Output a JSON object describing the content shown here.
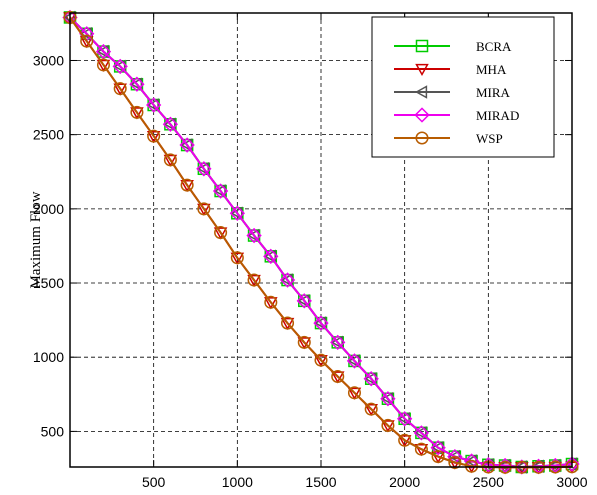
{
  "chart_data": {
    "type": "line",
    "title": "",
    "xlabel": "",
    "ylabel": "Maximum Flow",
    "xlim": [
      0,
      3000
    ],
    "ylim": [
      260,
      3320
    ],
    "xticks": [
      500,
      1000,
      1500,
      2000,
      2500,
      3000
    ],
    "yticks": [
      500,
      1000,
      1500,
      2000,
      2500,
      3000
    ],
    "grid": true,
    "legend_position": "top-right",
    "series": [
      {
        "name": "BCRA",
        "color": "#00cc00",
        "marker": "square",
        "x": [
          0,
          100,
          200,
          300,
          400,
          500,
          600,
          700,
          800,
          900,
          1000,
          1100,
          1200,
          1300,
          1400,
          1500,
          1600,
          1700,
          1800,
          1900,
          2000,
          2100,
          2200,
          2300,
          2400,
          2500,
          2600,
          2700,
          2800,
          2900,
          3000
        ],
        "y": [
          3290,
          3180,
          3060,
          2960,
          2840,
          2700,
          2570,
          2430,
          2270,
          2120,
          1970,
          1820,
          1680,
          1520,
          1380,
          1230,
          1100,
          975,
          855,
          720,
          585,
          490,
          390,
          330,
          300,
          275,
          270,
          260,
          265,
          270,
          280
        ]
      },
      {
        "name": "MHA",
        "color": "#cc0000",
        "marker": "triangle-down",
        "x": [
          0,
          100,
          200,
          300,
          400,
          500,
          600,
          700,
          800,
          900,
          1000,
          1100,
          1200,
          1300,
          1400,
          1500,
          1600,
          1700,
          1800,
          1900,
          2000,
          2100,
          2200,
          2300,
          2400,
          2500,
          2600,
          2700,
          2800,
          2900,
          3000
        ],
        "y": [
          3290,
          3130,
          2970,
          2810,
          2650,
          2490,
          2330,
          2160,
          2000,
          1840,
          1670,
          1520,
          1370,
          1230,
          1100,
          980,
          870,
          760,
          650,
          540,
          440,
          380,
          330,
          290,
          265,
          260,
          258,
          258,
          258,
          260,
          262
        ]
      },
      {
        "name": "MIRA",
        "color": "#555555",
        "marker": "triangle-left",
        "x": [
          0,
          100,
          200,
          300,
          400,
          500,
          600,
          700,
          800,
          900,
          1000,
          1100,
          1200,
          1300,
          1400,
          1500,
          1600,
          1700,
          1800,
          1900,
          2000,
          2100,
          2200,
          2300,
          2400,
          2500,
          2600,
          2700,
          2800,
          2900,
          3000
        ],
        "y": [
          3290,
          3180,
          3060,
          2960,
          2840,
          2700,
          2570,
          2430,
          2270,
          2120,
          1970,
          1820,
          1680,
          1520,
          1380,
          1230,
          1100,
          975,
          855,
          720,
          585,
          490,
          390,
          330,
          300,
          275,
          270,
          260,
          265,
          270,
          280
        ]
      },
      {
        "name": "MIRAD",
        "color": "#ee00ee",
        "marker": "diamond",
        "x": [
          0,
          100,
          200,
          300,
          400,
          500,
          600,
          700,
          800,
          900,
          1000,
          1100,
          1200,
          1300,
          1400,
          1500,
          1600,
          1700,
          1800,
          1900,
          2000,
          2100,
          2200,
          2300,
          2400,
          2500,
          2600,
          2700,
          2800,
          2900,
          3000
        ],
        "y": [
          3290,
          3180,
          3060,
          2960,
          2840,
          2700,
          2570,
          2430,
          2270,
          2120,
          1970,
          1820,
          1680,
          1520,
          1380,
          1230,
          1100,
          975,
          855,
          720,
          585,
          490,
          390,
          330,
          300,
          275,
          270,
          260,
          265,
          270,
          280
        ]
      },
      {
        "name": "WSP",
        "color": "#b85c00",
        "marker": "circle",
        "x": [
          0,
          100,
          200,
          300,
          400,
          500,
          600,
          700,
          800,
          900,
          1000,
          1100,
          1200,
          1300,
          1400,
          1500,
          1600,
          1700,
          1800,
          1900,
          2000,
          2100,
          2200,
          2300,
          2400,
          2500,
          2600,
          2700,
          2800,
          2900,
          3000
        ],
        "y": [
          3290,
          3130,
          2970,
          2810,
          2650,
          2490,
          2330,
          2160,
          2000,
          1840,
          1670,
          1520,
          1370,
          1230,
          1100,
          980,
          870,
          760,
          650,
          540,
          440,
          380,
          330,
          290,
          265,
          260,
          258,
          258,
          258,
          260,
          262
        ]
      }
    ]
  }
}
